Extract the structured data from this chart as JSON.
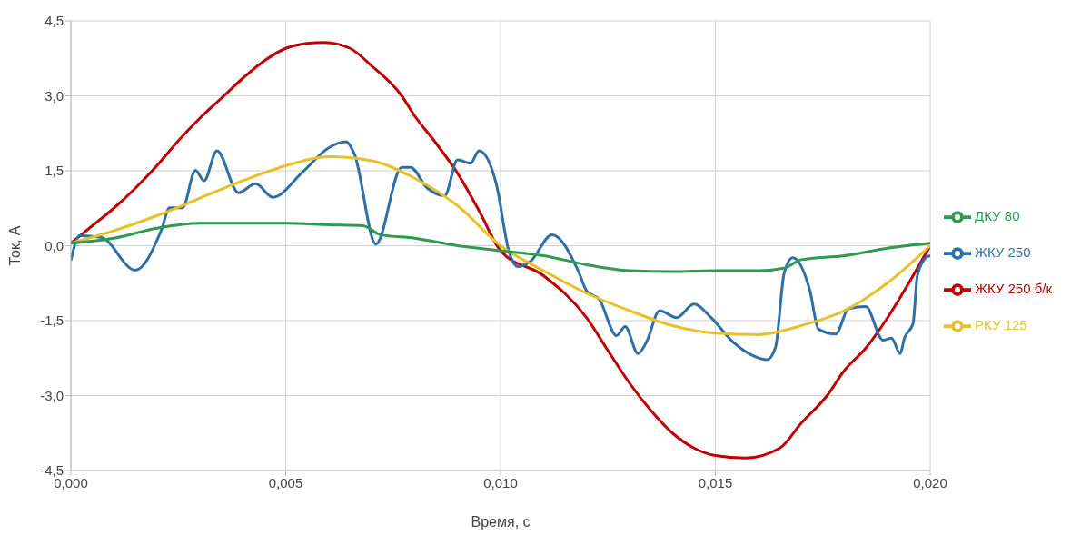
{
  "chart_data": {
    "type": "line",
    "xlabel": "Время, с",
    "ylabel": "Ток, А",
    "xlim": [
      0,
      0.02
    ],
    "ylim": [
      -4.5,
      4.5
    ],
    "xticks": [
      {
        "value": 0,
        "label": "0,000"
      },
      {
        "value": 0.005,
        "label": "0,005"
      },
      {
        "value": 0.01,
        "label": "0,010"
      },
      {
        "value": 0.015,
        "label": "0,015"
      },
      {
        "value": 0.02,
        "label": "0,020"
      }
    ],
    "yticks": [
      {
        "value": -4.5,
        "label": "-4,5"
      },
      {
        "value": -3,
        "label": "-3,0"
      },
      {
        "value": -1.5,
        "label": "-1,5"
      },
      {
        "value": 0,
        "label": "0,0"
      },
      {
        "value": 1.5,
        "label": "1,5"
      },
      {
        "value": 3,
        "label": "3,0"
      },
      {
        "value": 4.5,
        "label": "4,5"
      }
    ],
    "grid": true,
    "legend": "right",
    "marker": "none",
    "line_style": "solid",
    "series": [
      {
        "name": "ЖКУ 250 б/к",
        "color": "#c00000",
        "x": [
          0,
          0.0005,
          0.001,
          0.0015,
          0.002,
          0.0025,
          0.003,
          0.0035,
          0.004,
          0.0045,
          0.005,
          0.0055,
          0.0059,
          0.0065,
          0.007,
          0.0077,
          0.008,
          0.0085,
          0.009,
          0.0095,
          0.01,
          0.011,
          0.012,
          0.0125,
          0.013,
          0.0135,
          0.014,
          0.0145,
          0.015,
          0.0157,
          0.0165,
          0.017,
          0.0176,
          0.018,
          0.0185,
          0.019,
          0.0195,
          0.02
        ],
        "values": [
          0.05,
          0.4,
          0.75,
          1.15,
          1.6,
          2.1,
          2.55,
          2.95,
          3.35,
          3.7,
          3.95,
          4.05,
          4.07,
          3.95,
          3.6,
          3.0,
          2.6,
          2.05,
          1.45,
          0.7,
          -0.1,
          -0.6,
          -1.44,
          -2.1,
          -2.75,
          -3.3,
          -3.75,
          -4.05,
          -4.2,
          -4.25,
          -4.05,
          -3.55,
          -3.0,
          -2.5,
          -2.05,
          -1.45,
          -0.75,
          0
        ]
      },
      {
        "name": "ЖКУ 250",
        "color": "#2e6fa8",
        "x": [
          0,
          0.0002,
          0.0007,
          0.0015,
          0.0021,
          0.0023,
          0.0026,
          0.0029,
          0.0031,
          0.0034,
          0.0039,
          0.0043,
          0.0047,
          0.0054,
          0.006,
          0.0064,
          0.0066,
          0.0071,
          0.0077,
          0.0079,
          0.0083,
          0.0087,
          0.009,
          0.0093,
          0.0095,
          0.0099,
          0.0102,
          0.0104,
          0.0107,
          0.0112,
          0.0118,
          0.012,
          0.0123,
          0.0127,
          0.0129,
          0.0132,
          0.0134,
          0.0137,
          0.0141,
          0.0145,
          0.0149,
          0.0154,
          0.0159,
          0.0162,
          0.0164,
          0.0166,
          0.0168,
          0.0172,
          0.0174,
          0.0178,
          0.0181,
          0.0185,
          0.0189,
          0.0191,
          0.0193,
          0.0194,
          0.0196,
          0.0197,
          0.0199,
          0.02
        ],
        "values": [
          -0.3,
          0.2,
          0.17,
          -0.49,
          0.3,
          0.76,
          0.76,
          1.51,
          1.3,
          1.9,
          1.06,
          1.24,
          0.97,
          1.48,
          1.96,
          2.08,
          1.83,
          0.03,
          1.57,
          1.57,
          1.15,
          1.0,
          1.72,
          1.65,
          1.9,
          1.24,
          -0.13,
          -0.42,
          -0.31,
          0.22,
          -0.49,
          -0.9,
          -1.08,
          -1.8,
          -1.62,
          -2.16,
          -1.92,
          -1.3,
          -1.44,
          -1.17,
          -1.44,
          -1.92,
          -2.21,
          -2.28,
          -2.03,
          -0.55,
          -0.24,
          -0.9,
          -1.67,
          -1.77,
          -1.26,
          -1.22,
          -1.89,
          -1.85,
          -2.16,
          -1.85,
          -1.56,
          -0.6,
          -0.24,
          -0.2
        ]
      },
      {
        "name": "РКУ 125",
        "color": "#e8c02a",
        "x": [
          0,
          0.001,
          0.002,
          0.003,
          0.004,
          0.005,
          0.006,
          0.007,
          0.008,
          0.009,
          0.01,
          0.011,
          0.012,
          0.013,
          0.014,
          0.015,
          0.016,
          0.017,
          0.018,
          0.019,
          0.02
        ],
        "values": [
          0.05,
          0.3,
          0.6,
          0.95,
          1.3,
          1.6,
          1.78,
          1.7,
          1.35,
          0.8,
          0,
          -0.5,
          -0.95,
          -1.3,
          -1.6,
          -1.75,
          -1.78,
          -1.6,
          -1.3,
          -0.75,
          0
        ]
      },
      {
        "name": "ДКУ 80",
        "color": "#2f9a50",
        "x": [
          0,
          0.001,
          0.002,
          0.003,
          0.004,
          0.005,
          0.006,
          0.0068,
          0.0072,
          0.008,
          0.009,
          0.01,
          0.011,
          0.012,
          0.013,
          0.014,
          0.015,
          0.016,
          0.0166,
          0.017,
          0.018,
          0.019,
          0.02
        ],
        "values": [
          0.05,
          0.15,
          0.35,
          0.45,
          0.45,
          0.45,
          0.42,
          0.4,
          0.22,
          0.15,
          0,
          -0.1,
          -0.2,
          -0.38,
          -0.5,
          -0.52,
          -0.5,
          -0.5,
          -0.45,
          -0.28,
          -0.2,
          -0.05,
          0.05
        ]
      }
    ]
  }
}
